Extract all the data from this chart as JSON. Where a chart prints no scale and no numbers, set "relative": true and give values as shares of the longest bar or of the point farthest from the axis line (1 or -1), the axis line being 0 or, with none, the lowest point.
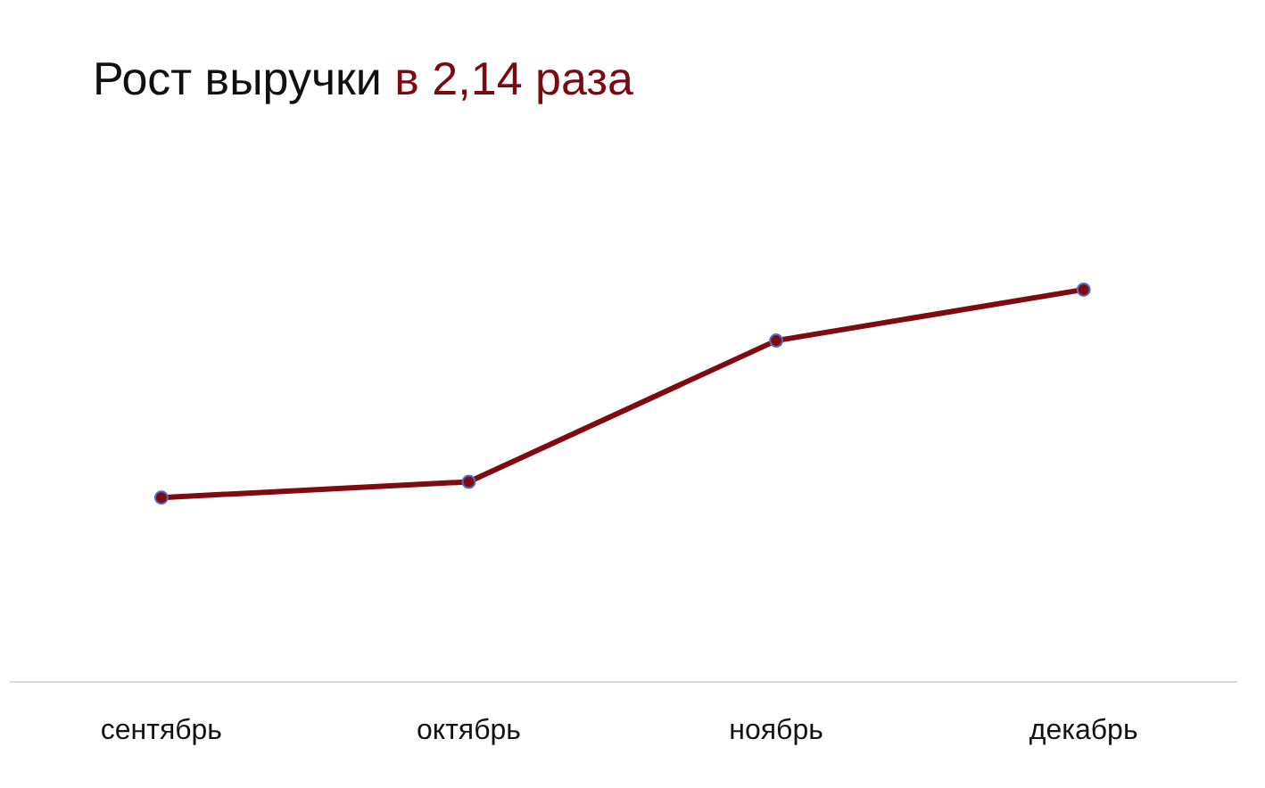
{
  "chart_data": {
    "type": "line",
    "title": "Рост выручки",
    "subtitle": "в 2,14 раза",
    "categories": [
      "сентябрь",
      "октябрь",
      "ноябрь",
      "декабрь"
    ],
    "relative": true,
    "series": [
      {
        "color": "#7f0a0f",
        "values": [
          0.47,
          0.51,
          0.87,
          1
        ]
      }
    ],
    "marker": "circle"
  }
}
